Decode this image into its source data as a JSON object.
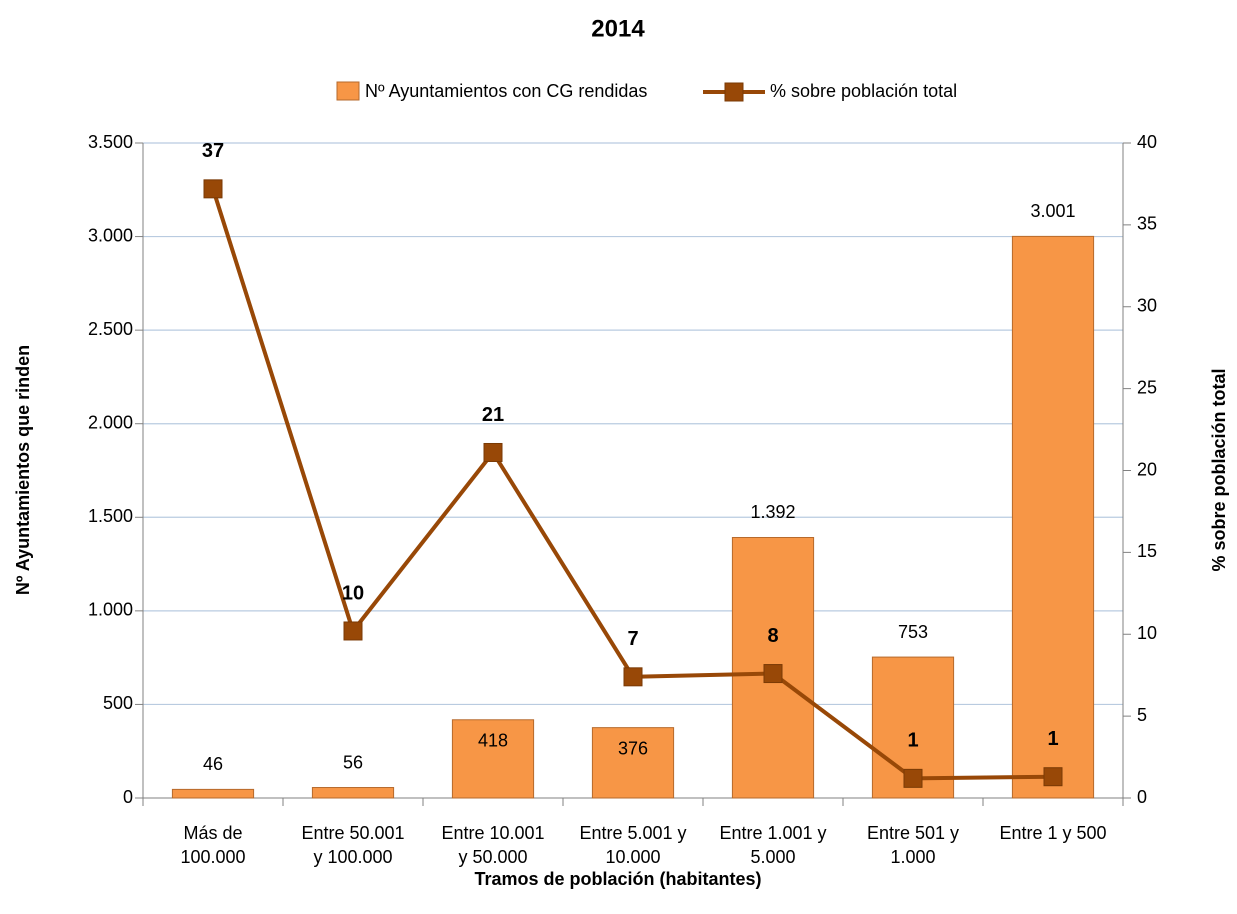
{
  "chart_data": {
    "type": "bar_line",
    "title": "2014",
    "x_label": "Tramos de población (habitantes)",
    "y_label": "Nº  Ayuntamientos que rinden",
    "y2_label": "% sobre población total",
    "categories": [
      "Más de\n100.000",
      "Entre 50.001\ny 100.000",
      "Entre 10.001\ny 50.000",
      "Entre 5.001 y\n10.000",
      "Entre 1.001 y\n5.000",
      "Entre 501 y\n1.000",
      "Entre 1 y 500"
    ],
    "series": [
      {
        "name": "Nº Ayuntamientos con CG rendidas",
        "type": "bar",
        "color": "#f79646",
        "values": [
          46,
          56,
          418,
          376,
          1392,
          753,
          3001
        ],
        "value_labels": [
          "46",
          "56",
          "418",
          "376",
          "1.392",
          "753",
          "3.001"
        ]
      },
      {
        "name": "% sobre población total",
        "type": "line",
        "axis": "y2",
        "color": "#984807",
        "values": [
          37.2,
          10.2,
          21.1,
          7.4,
          7.6,
          1.2,
          1.3
        ],
        "value_labels": [
          "37",
          "10",
          "21",
          "7",
          "8",
          "1",
          "1"
        ]
      }
    ],
    "ylim": [
      0,
      3500
    ],
    "yticks": [
      0,
      500,
      {
        "value": 1000,
        "label": "1.000"
      },
      {
        "value": 1500,
        "label": "1.500"
      },
      {
        "value": 2000,
        "label": "2.000"
      },
      {
        "value": 2500,
        "label": "2.500"
      },
      {
        "value": 3000,
        "label": "3.000"
      },
      {
        "value": 3500,
        "label": "3.500"
      }
    ],
    "y2lim": [
      0,
      40
    ],
    "y2ticks": [
      0,
      5,
      10,
      15,
      20,
      25,
      30,
      35,
      40
    ],
    "grid": true,
    "legend": "top"
  }
}
